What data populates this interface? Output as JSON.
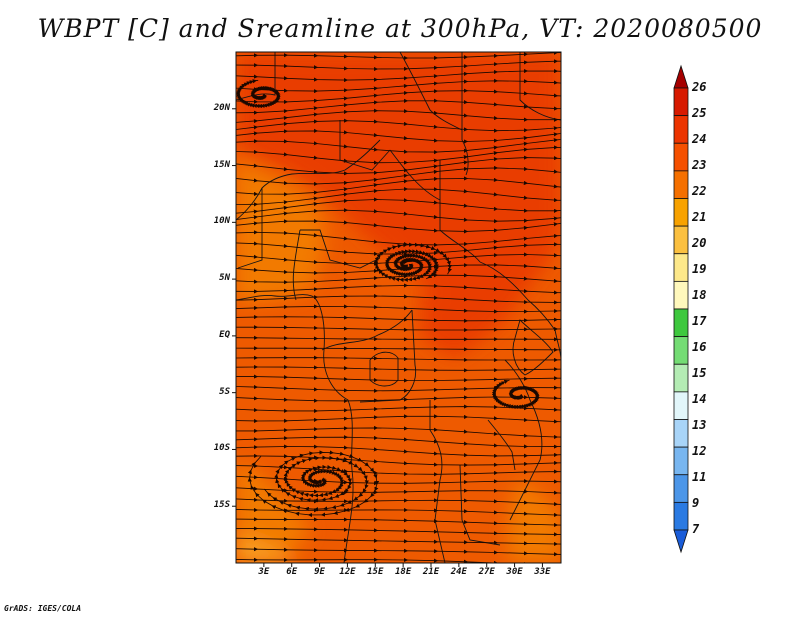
{
  "title": "WBPT [C] and Sreamline at 300hPa, VT: 2020080500",
  "credit": "GrADS: IGES/COLA",
  "map": {
    "lon_range": [
      0,
      35
    ],
    "lat_range": [
      -20,
      25
    ],
    "lat_ticks": [
      {
        "value": 20,
        "label": "20N"
      },
      {
        "value": 15,
        "label": "15N"
      },
      {
        "value": 10,
        "label": "10N"
      },
      {
        "value": 5,
        "label": "5N"
      },
      {
        "value": 0,
        "label": "EQ"
      },
      {
        "value": -5,
        "label": "5S"
      },
      {
        "value": -10,
        "label": "10S"
      },
      {
        "value": -15,
        "label": "15S"
      }
    ],
    "lon_ticks": [
      {
        "value": 3,
        "label": "3E"
      },
      {
        "value": 6,
        "label": "6E"
      },
      {
        "value": 9,
        "label": "9E"
      },
      {
        "value": 12,
        "label": "12E"
      },
      {
        "value": 15,
        "label": "15E"
      },
      {
        "value": 18,
        "label": "18E"
      },
      {
        "value": 21,
        "label": "21E"
      },
      {
        "value": 24,
        "label": "24E"
      },
      {
        "value": 27,
        "label": "27E"
      },
      {
        "value": 30,
        "label": "30E"
      },
      {
        "value": 33,
        "label": "33E"
      }
    ]
  },
  "colorbar": {
    "labels": [
      "26",
      "25",
      "24",
      "23",
      "22",
      "21",
      "20",
      "19",
      "18",
      "17",
      "16",
      "15",
      "14",
      "13",
      "12",
      "11",
      "9",
      "7"
    ],
    "colors": [
      "#a50000",
      "#d71a00",
      "#ec3400",
      "#f55000",
      "#f57000",
      "#f8a200",
      "#fbc040",
      "#fde88a",
      "#fff8bc",
      "#3ec83e",
      "#74dc74",
      "#b4ecb4",
      "#e2f6fa",
      "#a8d4f8",
      "#78b6f0",
      "#4c96e8",
      "#2a7ae2",
      "#1a5cd8"
    ]
  },
  "colors": {
    "field_base": "#ee5a00",
    "field_warm": "#e93c00",
    "field_cool": "#f27a00",
    "field_cooler": "#f9a020"
  }
}
